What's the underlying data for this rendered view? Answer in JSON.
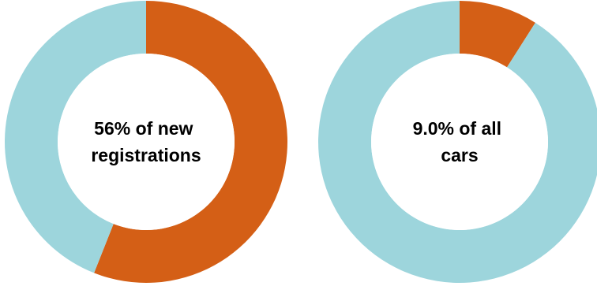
{
  "chart_data": [
    {
      "type": "pie",
      "style": "donut",
      "center_label": [
        "56% of new",
        "registrations"
      ],
      "slices": [
        {
          "value": 56,
          "color": "#D45F16"
        },
        {
          "value": 44,
          "color": "#9DD5DC"
        }
      ]
    },
    {
      "type": "pie",
      "style": "donut",
      "center_label": [
        "9.0% of all",
        "cars"
      ],
      "slices": [
        {
          "value": 9.0,
          "color": "#D45F16"
        },
        {
          "value": 91.0,
          "color": "#9DD5DC"
        }
      ]
    }
  ]
}
